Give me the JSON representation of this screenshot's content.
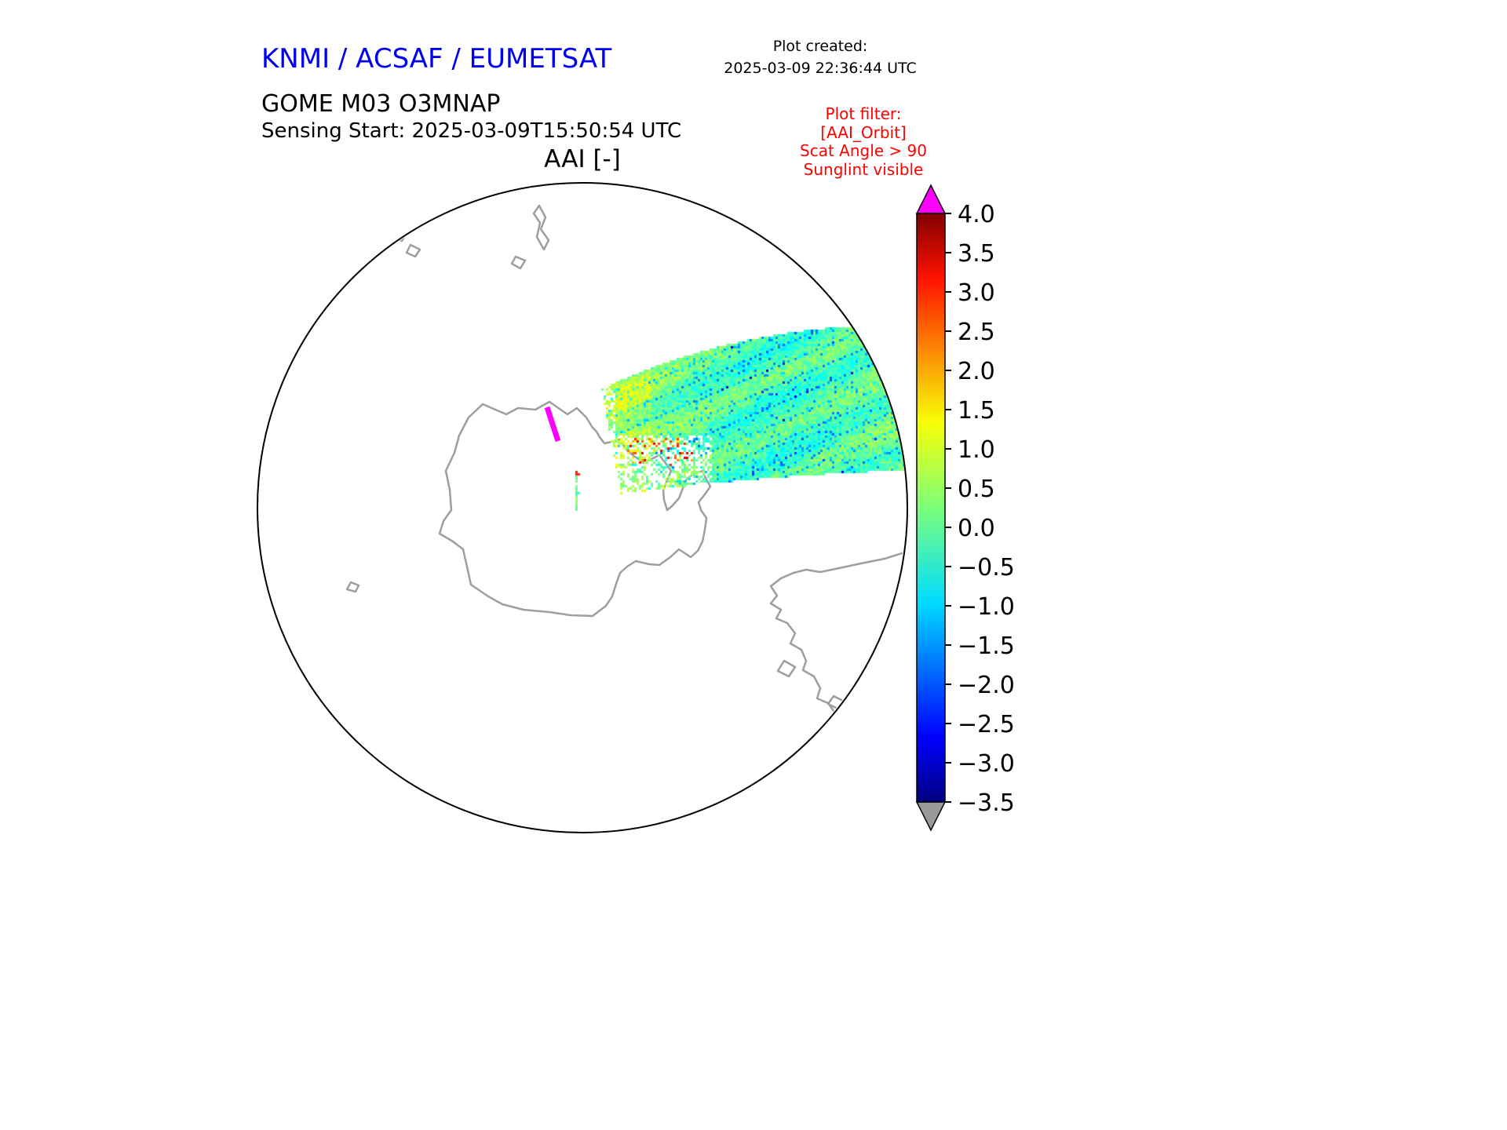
{
  "header": {
    "org": "KNMI / ACSAF / EUMETSAT",
    "created_label": "Plot created:",
    "created_value": "2025-03-09 22:36:44 UTC",
    "product": "GOME M03 O3MNAP",
    "sensing": "Sensing Start: 2025-03-09T15:50:54 UTC",
    "plot_title": "AAI [-]"
  },
  "filter_box": {
    "lines": [
      "Plot filter:",
      "[AAI_Orbit]",
      "Scat Angle > 90",
      "Sunglint visible"
    ]
  },
  "chart_data": {
    "type": "heatmap",
    "title": "AAI [-]",
    "projection": "south polar stereographic over Antarctica",
    "colorbar": {
      "vmin": -3.5,
      "vmax": 4.0,
      "step": 0.5,
      "tick_values": [
        4.0,
        3.5,
        3.0,
        2.5,
        2.0,
        1.5,
        1.0,
        0.5,
        0.0,
        -0.5,
        -1.0,
        -1.5,
        -2.0,
        -2.5,
        -3.0,
        -3.5
      ],
      "tick_labels": [
        "4.0",
        "3.5",
        "3.0",
        "2.5",
        "2.0",
        "1.5",
        "1.0",
        "0.5",
        "0.0",
        "−0.5",
        "−1.0",
        "−1.5",
        "−2.0",
        "−2.5",
        "−3.0",
        "−3.5"
      ],
      "colormap": "jet",
      "over_color": "#ff00ff",
      "under_color": "#9a9a9a"
    },
    "swath": {
      "description": "Single GOME-2 Metop-B orbit swath entering the plot near the Antarctic coast and extending to the upper-right circle edge; AAI values mostly between -1 and 1 (cyan/green), scattered yellow-orange to red pixels near the coast, isolated blue pixels near -2, plus a short saturated magenta streak over the continent and a small detached strip of pixels below the swath edge.",
      "typical_value_range": [
        -1.0,
        1.0
      ],
      "streak_color": "#ff00ff"
    }
  },
  "colors": {
    "title_blue": "#0000ee",
    "filter_red": "#ff0000",
    "coast_gray": "#9e9e9e",
    "outline_black": "#000000"
  }
}
